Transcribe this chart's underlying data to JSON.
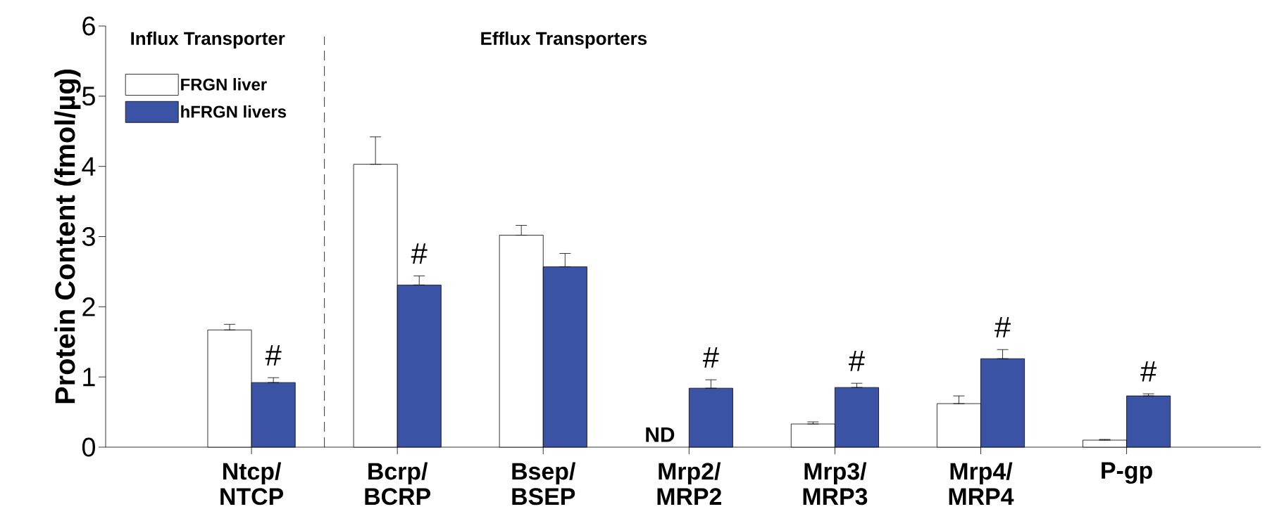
{
  "chart_data": {
    "type": "bar",
    "ylabel": "Protein Content (fmol/µg)",
    "categories": [
      "Ntcp/ NTCP",
      "Bcrp/ BCRP",
      "Bsep/ BSEP",
      "Mrp2/ MRP2",
      "Mrp3/ MRP3",
      "Mrp4/ MRP4",
      "P-gp"
    ],
    "series": [
      {
        "name": "FRGN liver",
        "color": "#ffffff",
        "values": [
          1.67,
          4.03,
          3.02,
          null,
          0.33,
          0.62,
          0.1
        ],
        "errors": [
          [
            1.67,
            1.75
          ],
          [
            4.03,
            4.42
          ],
          [
            3.02,
            3.16
          ],
          null,
          [
            0.33,
            0.36
          ],
          [
            0.62,
            0.73
          ],
          [
            0.1,
            0.11
          ]
        ]
      },
      {
        "name": "hFRGN livers",
        "color": "#3a53a4",
        "values": [
          0.92,
          2.31,
          2.57,
          0.84,
          0.85,
          1.26,
          0.73
        ],
        "errors": [
          [
            0.92,
            0.99
          ],
          [
            2.31,
            2.44
          ],
          [
            2.57,
            2.76
          ],
          [
            0.84,
            0.96
          ],
          [
            0.85,
            0.91
          ],
          [
            1.26,
            1.39
          ],
          [
            0.73,
            0.76
          ]
        ]
      }
    ],
    "ylim": [
      0,
      6
    ],
    "yticks": [
      0,
      1,
      2,
      3,
      4,
      5,
      6
    ],
    "grid": false,
    "legend": "top left",
    "annotations": [
      "Influx Transporter",
      "Efflux Transporters",
      {
        "text": "#",
        "x": "Ntcp/ NTCP"
      },
      {
        "text": "#",
        "x": "Bcrp/ BCRP"
      },
      {
        "text": "ND",
        "x": "Mrp2/ MRP2",
        "y": 0
      },
      "#",
      "#",
      "#",
      "#"
    ]
  }
}
